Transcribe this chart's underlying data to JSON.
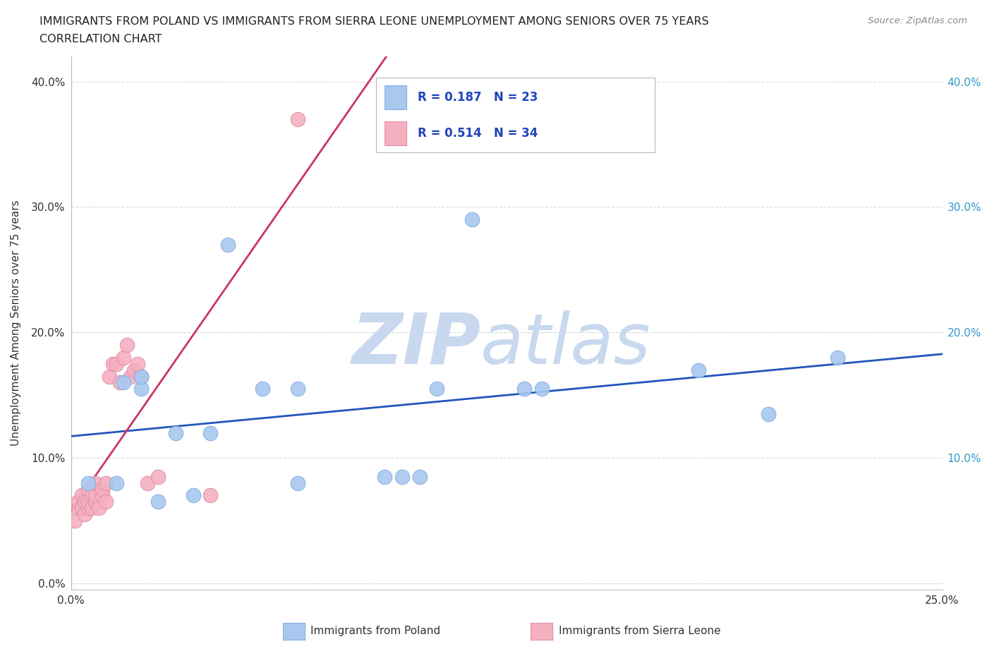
{
  "title1": "IMMIGRANTS FROM POLAND VS IMMIGRANTS FROM SIERRA LEONE UNEMPLOYMENT AMONG SENIORS OVER 75 YEARS",
  "title2": "CORRELATION CHART",
  "ylabel": "Unemployment Among Seniors over 75 years",
  "source": "Source: ZipAtlas.com",
  "xlim": [
    0.0,
    0.25
  ],
  "ylim": [
    -0.005,
    0.42
  ],
  "poland_color": "#a8c8f0",
  "poland_edge_color": "#85aee0",
  "sierra_leone_color": "#f5b0c0",
  "sierra_leone_edge_color": "#e090a8",
  "poland_line_color": "#2255bb",
  "sierra_leone_line_color": "#cc3366",
  "poland_R": "0.187",
  "poland_N": "23",
  "sierra_leone_R": "0.514",
  "sierra_leone_N": "34",
  "legend_text_color": "#2244bb",
  "watermark_zip_color": "#c8d8ef",
  "watermark_atlas_color": "#c8d8ef",
  "poland_x": [
    0.005,
    0.013,
    0.015,
    0.02,
    0.02,
    0.025,
    0.03,
    0.035,
    0.04,
    0.045,
    0.055,
    0.065,
    0.065,
    0.09,
    0.095,
    0.1,
    0.105,
    0.115,
    0.13,
    0.135,
    0.18,
    0.2,
    0.22
  ],
  "poland_y": [
    0.08,
    0.08,
    0.16,
    0.155,
    0.165,
    0.065,
    0.12,
    0.07,
    0.12,
    0.27,
    0.155,
    0.155,
    0.08,
    0.085,
    0.085,
    0.085,
    0.155,
    0.29,
    0.155,
    0.155,
    0.17,
    0.135,
    0.18
  ],
  "sierra_leone_x": [
    0.001,
    0.002,
    0.002,
    0.003,
    0.003,
    0.004,
    0.004,
    0.005,
    0.005,
    0.005,
    0.006,
    0.006,
    0.007,
    0.007,
    0.007,
    0.008,
    0.009,
    0.009,
    0.01,
    0.01,
    0.011,
    0.012,
    0.013,
    0.014,
    0.015,
    0.016,
    0.017,
    0.018,
    0.019,
    0.02,
    0.022,
    0.025,
    0.04,
    0.065
  ],
  "sierra_leone_y": [
    0.05,
    0.06,
    0.065,
    0.06,
    0.07,
    0.055,
    0.065,
    0.06,
    0.065,
    0.075,
    0.06,
    0.07,
    0.065,
    0.07,
    0.08,
    0.06,
    0.07,
    0.075,
    0.065,
    0.08,
    0.165,
    0.175,
    0.175,
    0.16,
    0.18,
    0.19,
    0.165,
    0.17,
    0.175,
    0.165,
    0.08,
    0.085,
    0.07,
    0.37
  ]
}
